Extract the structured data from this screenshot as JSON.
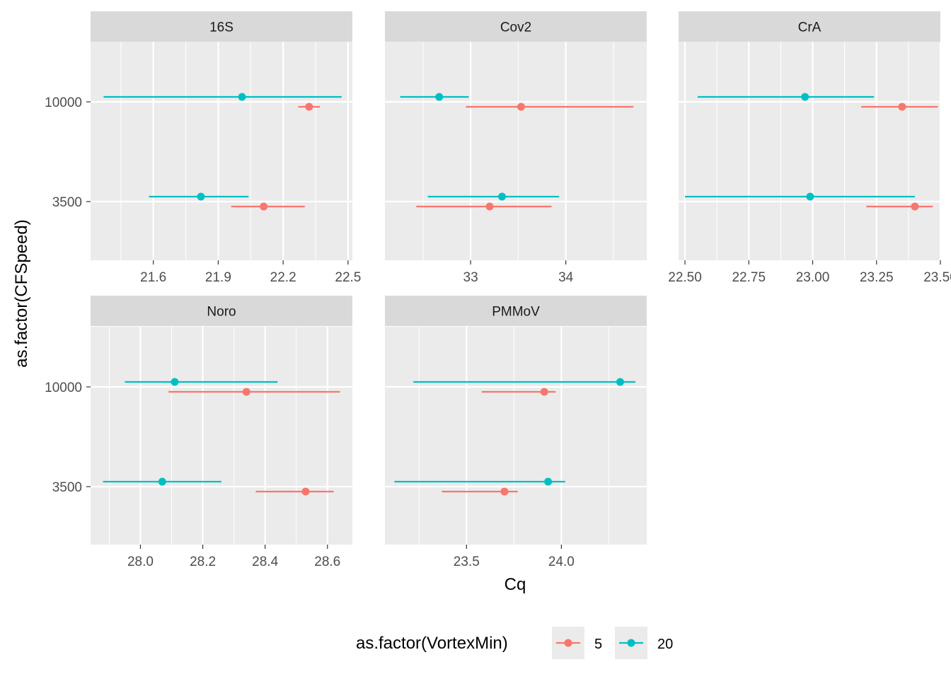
{
  "chart_data": {
    "type": "errorbar",
    "xlabel": "Cq",
    "ylabel": "as.factor(CFSpeed)",
    "y_categories": [
      "3500",
      "10000"
    ],
    "legend": {
      "title": "as.factor(VortexMin)",
      "position": "bottom",
      "entries": [
        {
          "label": "5",
          "color": "#F8766D"
        },
        {
          "label": "20",
          "color": "#00BFC4"
        }
      ]
    },
    "colors": {
      "5": "#F8766D",
      "20": "#00BFC4",
      "panel_bg": "#EBEBEB",
      "strip_bg": "#D9D9D9"
    },
    "panels": [
      {
        "name": "16S",
        "xlim": [
          21.31,
          22.52
        ],
        "ticks": [
          21.6,
          21.9,
          22.2,
          22.5
        ],
        "tick_labels": [
          "21.6",
          "21.9",
          "22.2",
          "22.5"
        ],
        "series": [
          {
            "group": "5",
            "points": [
              {
                "y": "10000",
                "x": 22.32,
                "xmin": 22.27,
                "xmax": 22.37
              },
              {
                "y": "3500",
                "x": 22.11,
                "xmin": 21.96,
                "xmax": 22.3
              }
            ]
          },
          {
            "group": "20",
            "points": [
              {
                "y": "10000",
                "x": 22.01,
                "xmin": 21.37,
                "xmax": 22.47
              },
              {
                "y": "3500",
                "x": 21.82,
                "xmin": 21.58,
                "xmax": 22.04
              }
            ]
          }
        ]
      },
      {
        "name": "Cov2",
        "xlim": [
          32.1,
          34.85
        ],
        "ticks": [
          33,
          34
        ],
        "tick_labels": [
          "33",
          "34"
        ],
        "series": [
          {
            "group": "5",
            "points": [
              {
                "y": "10000",
                "x": 33.53,
                "xmin": 32.95,
                "xmax": 34.71
              },
              {
                "y": "3500",
                "x": 33.2,
                "xmin": 32.43,
                "xmax": 33.85
              }
            ]
          },
          {
            "group": "20",
            "points": [
              {
                "y": "10000",
                "x": 32.67,
                "xmin": 32.26,
                "xmax": 32.98
              },
              {
                "y": "3500",
                "x": 33.33,
                "xmin": 32.55,
                "xmax": 33.93
              }
            ]
          }
        ]
      },
      {
        "name": "CrA",
        "xlim": [
          22.475,
          23.5
        ],
        "ticks": [
          22.5,
          22.75,
          23.0,
          23.25,
          23.5
        ],
        "tick_labels": [
          "22.50",
          "22.75",
          "23.00",
          "23.25",
          "23.50"
        ],
        "series": [
          {
            "group": "5",
            "points": [
              {
                "y": "10000",
                "x": 23.35,
                "xmin": 23.19,
                "xmax": 23.49
              },
              {
                "y": "3500",
                "x": 23.4,
                "xmin": 23.21,
                "xmax": 23.47
              }
            ]
          },
          {
            "group": "20",
            "points": [
              {
                "y": "10000",
                "x": 22.97,
                "xmin": 22.55,
                "xmax": 23.24
              },
              {
                "y": "3500",
                "x": 22.99,
                "xmin": 22.5,
                "xmax": 23.4
              }
            ]
          }
        ]
      },
      {
        "name": "Noro",
        "xlim": [
          27.84,
          28.68
        ],
        "ticks": [
          28.0,
          28.2,
          28.4,
          28.6
        ],
        "tick_labels": [
          "28.0",
          "28.2",
          "28.4",
          "28.6"
        ],
        "series": [
          {
            "group": "5",
            "points": [
              {
                "y": "10000",
                "x": 28.34,
                "xmin": 28.09,
                "xmax": 28.64
              },
              {
                "y": "3500",
                "x": 28.53,
                "xmin": 28.37,
                "xmax": 28.62
              }
            ]
          },
          {
            "group": "20",
            "points": [
              {
                "y": "10000",
                "x": 28.11,
                "xmin": 27.95,
                "xmax": 28.44
              },
              {
                "y": "3500",
                "x": 28.07,
                "xmin": 27.88,
                "xmax": 28.26
              }
            ]
          }
        ]
      },
      {
        "name": "PMMoV",
        "xlim": [
          23.07,
          24.45
        ],
        "ticks": [
          23.5,
          24.0
        ],
        "tick_labels": [
          "23.5",
          "24.0"
        ],
        "series": [
          {
            "group": "5",
            "points": [
              {
                "y": "10000",
                "x": 23.91,
                "xmin": 23.58,
                "xmax": 23.97
              },
              {
                "y": "3500",
                "x": 23.7,
                "xmin": 23.37,
                "xmax": 23.77
              }
            ]
          },
          {
            "group": "20",
            "points": [
              {
                "y": "10000",
                "x": 24.31,
                "xmin": 23.22,
                "xmax": 24.39
              },
              {
                "y": "3500",
                "x": 23.93,
                "xmin": 23.12,
                "xmax": 24.02
              }
            ]
          }
        ]
      }
    ]
  }
}
